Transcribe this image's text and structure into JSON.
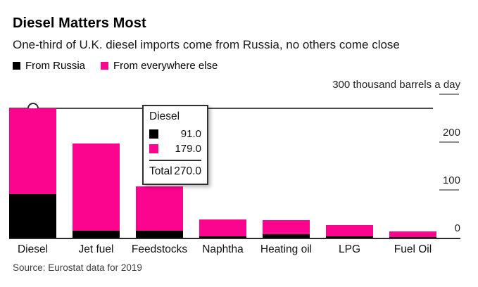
{
  "header": {
    "title": "Diesel Matters Most",
    "subtitle": "One-third of U.K. diesel imports come from Russia, no others come close"
  },
  "legend": {
    "items": [
      {
        "label": "From Russia",
        "color": "#000000"
      },
      {
        "label": "From everywhere else",
        "color": "#fc058e"
      }
    ]
  },
  "axis": {
    "ticks": [
      {
        "value": 300,
        "label": "300 thousand barrels a day"
      },
      {
        "value": 200,
        "label": "200"
      },
      {
        "value": 100,
        "label": "100"
      },
      {
        "value": 0,
        "label": "0"
      }
    ]
  },
  "chart_data": {
    "type": "bar",
    "stacked": true,
    "title": "Diesel Matters Most",
    "subtitle": "One-third of U.K. diesel imports come from Russia, no others come close",
    "unit": "thousand barrels a day",
    "categories": [
      "Diesel",
      "Jet fuel",
      "Feedstocks",
      "Naphtha",
      "Heating oil",
      "LPG",
      "Fuel Oil"
    ],
    "series": [
      {
        "name": "From Russia",
        "color": "#000000",
        "values": [
          91,
          15,
          15,
          3,
          7,
          3,
          1
        ]
      },
      {
        "name": "From everywhere else",
        "color": "#fc058e",
        "values": [
          179,
          182,
          93,
          35,
          29,
          23,
          12
        ]
      }
    ],
    "totals": [
      270,
      197,
      108,
      38,
      36,
      26,
      13
    ],
    "ylim": [
      0,
      300
    ],
    "yticks": [
      0,
      100,
      200,
      300
    ],
    "legend_position": "top-left",
    "grid": false,
    "highlight": {
      "category": "Diesel",
      "value": 270
    }
  },
  "tooltip": {
    "title": "Diesel",
    "rows": [
      {
        "series": "From Russia",
        "color": "#000000",
        "value": "91.0"
      },
      {
        "series": "From everywhere else",
        "color": "#fc058e",
        "value": "179.0"
      }
    ],
    "total_label": "Total",
    "total_value": "270.0"
  },
  "footer": {
    "source": "Source: Eurostat data for 2019"
  },
  "colors": {
    "russia": "#000000",
    "everywhere_else": "#fc058e",
    "axis_line": "#2b2b2b",
    "tick": "#8a8a8a",
    "crosshair": "#4a4a4a"
  }
}
